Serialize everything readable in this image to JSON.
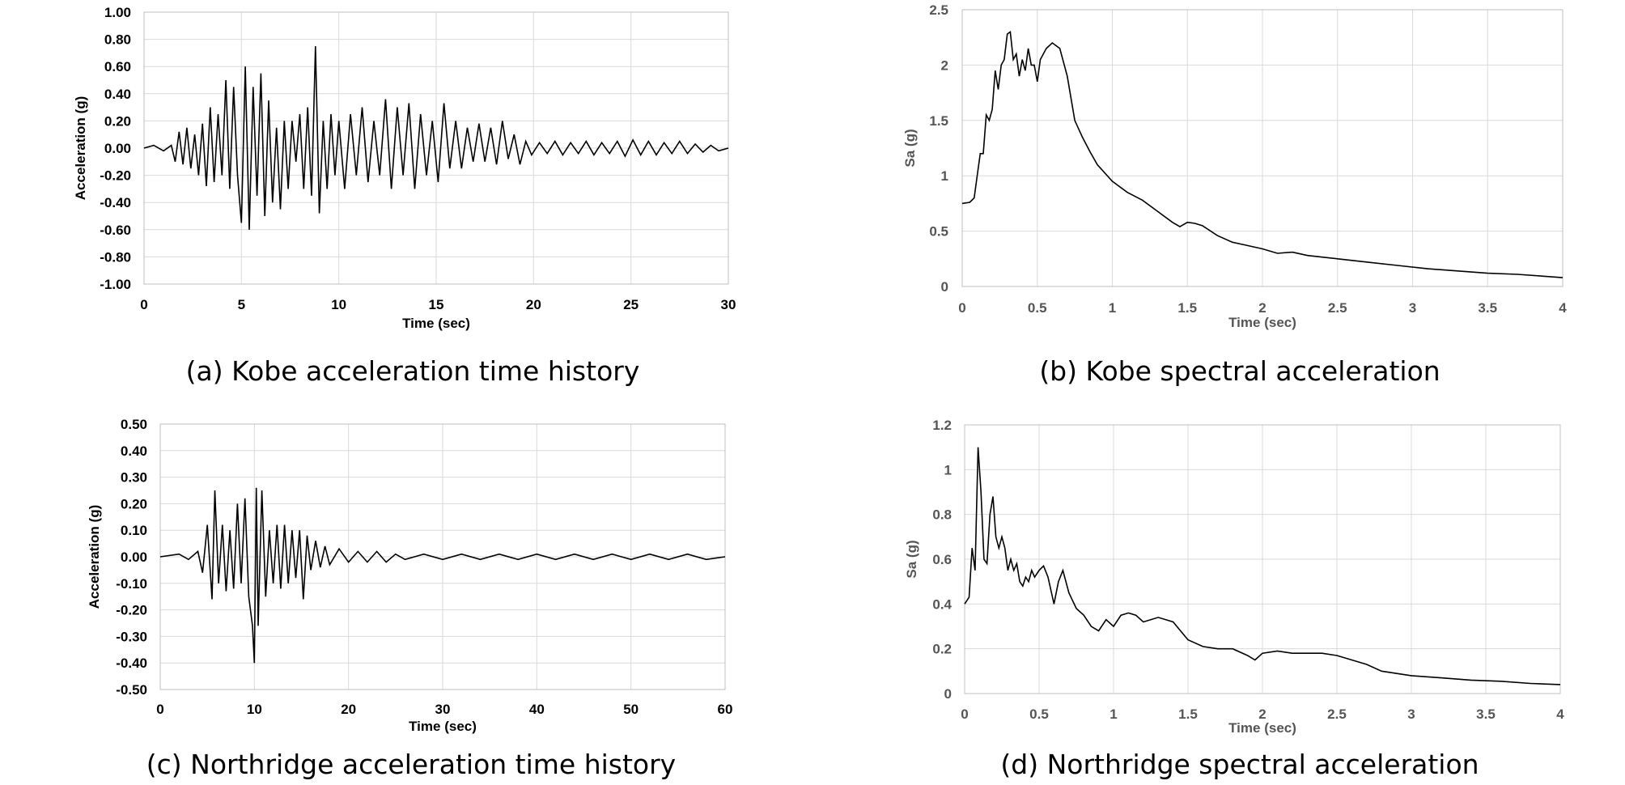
{
  "chart_data": [
    {
      "type": "line",
      "caption": "(a) Kobe acceleration time history",
      "xlabel": "Time (sec)",
      "ylabel": "Acceleration (g)",
      "xlim": [
        0,
        30
      ],
      "ylim": [
        -1.0,
        1.0
      ],
      "x_ticks": [
        "0",
        "5",
        "10",
        "15",
        "20",
        "25",
        "30"
      ],
      "y_ticks": [
        "1.00",
        "0.80",
        "0.60",
        "0.40",
        "0.20",
        "0.00",
        "-0.20",
        "-0.40",
        "-0.60",
        "-0.80",
        "-1.00"
      ],
      "grid": true,
      "series": [
        {
          "x": [
            0,
            0.5,
            1,
            1.4,
            1.6,
            1.8,
            2.0,
            2.2,
            2.4,
            2.6,
            2.8,
            3.0,
            3.2,
            3.4,
            3.6,
            3.8,
            4.0,
            4.2,
            4.4,
            4.6,
            4.8,
            5.0,
            5.2,
            5.4,
            5.6,
            5.8,
            6.0,
            6.2,
            6.4,
            6.6,
            6.8,
            7.0,
            7.2,
            7.4,
            7.6,
            7.8,
            8.0,
            8.2,
            8.4,
            8.6,
            8.8,
            9.0,
            9.2,
            9.4,
            9.6,
            9.8,
            10.0,
            10.3,
            10.6,
            10.9,
            11.2,
            11.5,
            11.8,
            12.1,
            12.4,
            12.7,
            13.0,
            13.3,
            13.6,
            13.9,
            14.2,
            14.5,
            14.8,
            15.1,
            15.4,
            15.7,
            16.0,
            16.3,
            16.6,
            16.9,
            17.2,
            17.5,
            17.8,
            18.1,
            18.4,
            18.7,
            19.0,
            19.3,
            19.6,
            19.9,
            20.3,
            20.7,
            21.1,
            21.5,
            21.9,
            22.3,
            22.7,
            23.1,
            23.5,
            23.9,
            24.3,
            24.7,
            25.1,
            25.5,
            25.9,
            26.3,
            26.7,
            27.1,
            27.5,
            27.9,
            28.3,
            28.7,
            29.1,
            29.5,
            30.0
          ],
          "y": [
            0.0,
            0.02,
            -0.02,
            0.02,
            -0.1,
            0.12,
            -0.12,
            0.15,
            -0.15,
            0.1,
            -0.2,
            0.18,
            -0.28,
            0.3,
            -0.25,
            0.25,
            -0.2,
            0.5,
            -0.3,
            0.45,
            -0.2,
            -0.55,
            0.6,
            -0.6,
            0.45,
            -0.35,
            0.55,
            -0.5,
            0.35,
            -0.4,
            0.15,
            -0.45,
            0.2,
            -0.3,
            0.2,
            -0.1,
            0.25,
            -0.3,
            0.3,
            -0.35,
            0.75,
            -0.48,
            0.2,
            -0.3,
            0.25,
            -0.2,
            0.2,
            -0.3,
            0.25,
            -0.2,
            0.3,
            -0.25,
            0.2,
            -0.2,
            0.36,
            -0.3,
            0.3,
            -0.2,
            0.33,
            -0.3,
            0.25,
            -0.2,
            0.2,
            -0.25,
            0.33,
            -0.15,
            0.2,
            -0.15,
            0.15,
            -0.1,
            0.18,
            -0.1,
            0.15,
            -0.12,
            0.2,
            -0.08,
            0.1,
            -0.12,
            0.05,
            -0.05,
            0.04,
            -0.04,
            0.05,
            -0.05,
            0.04,
            -0.04,
            0.05,
            -0.05,
            0.04,
            -0.04,
            0.05,
            -0.06,
            0.06,
            -0.05,
            0.05,
            -0.05,
            0.04,
            -0.04,
            0.05,
            -0.04,
            0.03,
            -0.03,
            0.02,
            -0.02,
            0.0
          ]
        }
      ]
    },
    {
      "type": "line",
      "caption": "(b) Kobe spectral acceleration",
      "xlabel": "Time (sec)",
      "ylabel": "Sa (g)",
      "xlim": [
        0,
        4
      ],
      "ylim": [
        0,
        2.5
      ],
      "x_ticks": [
        "0",
        "0.5",
        "1",
        "1.5",
        "2",
        "2.5",
        "3",
        "3.5",
        "4"
      ],
      "y_ticks": [
        "2.5",
        "2",
        "1.5",
        "1",
        "0.5",
        "0"
      ],
      "grid": true,
      "series": [
        {
          "x": [
            0,
            0.05,
            0.08,
            0.1,
            0.12,
            0.14,
            0.16,
            0.18,
            0.2,
            0.22,
            0.24,
            0.26,
            0.28,
            0.3,
            0.32,
            0.34,
            0.36,
            0.38,
            0.4,
            0.42,
            0.44,
            0.46,
            0.48,
            0.5,
            0.52,
            0.54,
            0.56,
            0.6,
            0.65,
            0.7,
            0.75,
            0.8,
            0.85,
            0.9,
            1.0,
            1.1,
            1.2,
            1.3,
            1.4,
            1.45,
            1.5,
            1.55,
            1.6,
            1.7,
            1.8,
            1.9,
            2.0,
            2.1,
            2.2,
            2.3,
            2.5,
            2.7,
            2.9,
            3.1,
            3.3,
            3.5,
            3.7,
            3.9,
            4.0
          ],
          "y": [
            0.75,
            0.76,
            0.8,
            1.0,
            1.2,
            1.2,
            1.55,
            1.5,
            1.6,
            1.95,
            1.78,
            2.0,
            2.05,
            2.28,
            2.3,
            2.05,
            2.1,
            1.9,
            2.05,
            1.95,
            2.15,
            2.0,
            2.0,
            1.85,
            2.05,
            2.1,
            2.15,
            2.2,
            2.15,
            1.9,
            1.5,
            1.35,
            1.22,
            1.1,
            0.95,
            0.85,
            0.78,
            0.68,
            0.58,
            0.54,
            0.58,
            0.57,
            0.55,
            0.46,
            0.4,
            0.37,
            0.34,
            0.3,
            0.31,
            0.28,
            0.25,
            0.22,
            0.19,
            0.16,
            0.14,
            0.12,
            0.11,
            0.09,
            0.08
          ]
        }
      ]
    },
    {
      "type": "line",
      "caption": "(c) Northridge acceleration time history",
      "xlabel": "Time (sec)",
      "ylabel": "Acceleration (g)",
      "xlim": [
        0,
        60
      ],
      "ylim": [
        -0.5,
        0.5
      ],
      "x_ticks": [
        "0",
        "10",
        "20",
        "30",
        "40",
        "50",
        "60"
      ],
      "y_ticks": [
        "0.50",
        "0.40",
        "0.30",
        "0.20",
        "0.10",
        "0.00",
        "-0.10",
        "-0.20",
        "-0.30",
        "-0.40",
        "-0.50"
      ],
      "grid": true,
      "series": [
        {
          "x": [
            0,
            2,
            3,
            4,
            4.5,
            5,
            5.5,
            5.8,
            6.2,
            6.6,
            7,
            7.4,
            7.8,
            8.2,
            8.6,
            9,
            9.4,
            9.8,
            10,
            10.2,
            10.4,
            10.8,
            11.2,
            11.6,
            12,
            12.4,
            12.8,
            13.2,
            13.6,
            14,
            14.4,
            14.8,
            15.2,
            15.6,
            16,
            16.5,
            17,
            17.5,
            18,
            19,
            20,
            21,
            22,
            23,
            24,
            25,
            26,
            28,
            30,
            32,
            34,
            36,
            38,
            40,
            42,
            44,
            46,
            48,
            50,
            52,
            54,
            56,
            58,
            60
          ],
          "y": [
            0.0,
            0.01,
            -0.01,
            0.02,
            -0.06,
            0.12,
            -0.16,
            0.25,
            -0.1,
            0.12,
            -0.13,
            0.1,
            -0.12,
            0.2,
            -0.1,
            0.22,
            -0.15,
            -0.26,
            -0.4,
            0.26,
            -0.26,
            0.25,
            -0.15,
            0.1,
            -0.1,
            0.12,
            -0.12,
            0.12,
            -0.1,
            0.1,
            -0.08,
            0.1,
            -0.16,
            0.08,
            -0.05,
            0.06,
            -0.04,
            0.04,
            -0.03,
            0.03,
            -0.02,
            0.02,
            -0.02,
            0.02,
            -0.02,
            0.01,
            -0.01,
            0.01,
            -0.01,
            0.01,
            -0.01,
            0.01,
            -0.01,
            0.01,
            -0.01,
            0.01,
            -0.01,
            0.01,
            -0.01,
            0.01,
            -0.01,
            0.01,
            -0.01,
            0.0
          ]
        }
      ]
    },
    {
      "type": "line",
      "caption": "(d) Northridge spectral acceleration",
      "xlabel": "Time (sec)",
      "ylabel": "Sa (g)",
      "xlim": [
        0,
        4
      ],
      "ylim": [
        0,
        1.2
      ],
      "x_ticks": [
        "0",
        "0.5",
        "1",
        "1.5",
        "2",
        "2.5",
        "3",
        "3.5",
        "4"
      ],
      "y_ticks": [
        "1.2",
        "1",
        "0.8",
        "0.6",
        "0.4",
        "0.2",
        "0"
      ],
      "grid": true,
      "series": [
        {
          "x": [
            0,
            0.03,
            0.05,
            0.07,
            0.09,
            0.11,
            0.13,
            0.15,
            0.17,
            0.19,
            0.21,
            0.23,
            0.25,
            0.27,
            0.29,
            0.31,
            0.33,
            0.35,
            0.37,
            0.39,
            0.41,
            0.43,
            0.45,
            0.47,
            0.5,
            0.53,
            0.56,
            0.6,
            0.63,
            0.66,
            0.7,
            0.75,
            0.8,
            0.85,
            0.9,
            0.95,
            1.0,
            1.05,
            1.1,
            1.15,
            1.2,
            1.3,
            1.4,
            1.5,
            1.6,
            1.7,
            1.8,
            1.9,
            1.95,
            2.0,
            2.1,
            2.2,
            2.3,
            2.4,
            2.5,
            2.6,
            2.7,
            2.8,
            3.0,
            3.2,
            3.4,
            3.6,
            3.8,
            4.0
          ],
          "y": [
            0.4,
            0.43,
            0.65,
            0.55,
            1.1,
            0.9,
            0.6,
            0.58,
            0.8,
            0.88,
            0.7,
            0.65,
            0.7,
            0.65,
            0.55,
            0.6,
            0.55,
            0.58,
            0.5,
            0.48,
            0.52,
            0.5,
            0.55,
            0.52,
            0.55,
            0.57,
            0.52,
            0.4,
            0.5,
            0.55,
            0.45,
            0.38,
            0.35,
            0.3,
            0.28,
            0.33,
            0.3,
            0.35,
            0.36,
            0.35,
            0.32,
            0.34,
            0.32,
            0.24,
            0.21,
            0.2,
            0.2,
            0.17,
            0.15,
            0.18,
            0.19,
            0.18,
            0.18,
            0.18,
            0.17,
            0.15,
            0.13,
            0.1,
            0.08,
            0.07,
            0.06,
            0.055,
            0.045,
            0.04
          ]
        }
      ]
    }
  ]
}
